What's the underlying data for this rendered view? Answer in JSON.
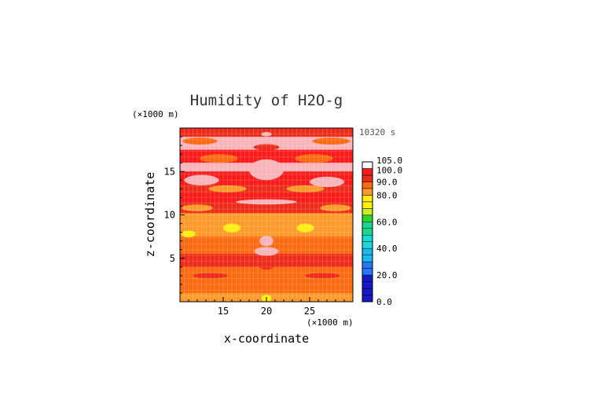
{
  "chart_data": {
    "type": "heatmap",
    "title": "Humidity of H2O-g",
    "time_label": "10320 s",
    "xlabel": "x-coordinate",
    "ylabel": "z-coordinate",
    "x_unit": "(×1000 m)",
    "y_unit": "(×1000 m)",
    "xlim": [
      10,
      30
    ],
    "ylim": [
      0,
      20
    ],
    "x_ticks": [
      "15",
      "20",
      "25"
    ],
    "y_ticks": [
      "5",
      "10",
      "15"
    ],
    "colorbar": {
      "labels": [
        "0.0",
        "20.0",
        "40.0",
        "60.0",
        "80.0",
        "90.0",
        "100.0",
        "105.0"
      ],
      "min": 0,
      "max": 105
    },
    "bands": [
      {
        "z": [
          19.0,
          20.0
        ],
        "value": 92
      },
      {
        "z": [
          17.5,
          19.0
        ],
        "value": 100
      },
      {
        "z": [
          16.0,
          17.5
        ],
        "value": 97
      },
      {
        "z": [
          15.0,
          16.0
        ],
        "value": 101
      },
      {
        "z": [
          13.5,
          15.0
        ],
        "value": 96
      },
      {
        "z": [
          12.5,
          13.5
        ],
        "value": 90
      },
      {
        "z": [
          11.5,
          12.5
        ],
        "value": 99
      },
      {
        "z": [
          10.2,
          11.5
        ],
        "value": 91
      },
      {
        "z": [
          9.0,
          10.2
        ],
        "value": 80
      },
      {
        "z": [
          7.5,
          9.0
        ],
        "value": 84
      },
      {
        "z": [
          5.5,
          7.5
        ],
        "value": 88
      },
      {
        "z": [
          4.0,
          5.5
        ],
        "value": 90
      },
      {
        "z": [
          2.5,
          4.0
        ],
        "value": 86
      },
      {
        "z": [
          1.0,
          2.5
        ],
        "value": 88
      },
      {
        "z": [
          0.0,
          1.0
        ],
        "value": 84
      }
    ],
    "blobs": [
      {
        "x": 20,
        "z": 19.3,
        "rx": 0.6,
        "rz": 0.25,
        "value": 101
      },
      {
        "x": 12.3,
        "z": 18.5,
        "rx": 2.0,
        "rz": 0.4,
        "value": 88
      },
      {
        "x": 27.5,
        "z": 18.5,
        "rx": 2.2,
        "rz": 0.4,
        "value": 88
      },
      {
        "x": 20,
        "z": 17.8,
        "rx": 1.5,
        "rz": 0.35,
        "value": 92
      },
      {
        "x": 14.5,
        "z": 16.5,
        "rx": 2.2,
        "rz": 0.5,
        "value": 88
      },
      {
        "x": 25.5,
        "z": 16.5,
        "rx": 2.2,
        "rz": 0.5,
        "value": 88
      },
      {
        "x": 20,
        "z": 15.2,
        "rx": 2.0,
        "rz": 1.2,
        "value": 101
      },
      {
        "x": 12.5,
        "z": 14.0,
        "rx": 2.0,
        "rz": 0.6,
        "value": 101
      },
      {
        "x": 27.0,
        "z": 13.8,
        "rx": 2.0,
        "rz": 0.6,
        "value": 101
      },
      {
        "x": 15.5,
        "z": 13.0,
        "rx": 2.2,
        "rz": 0.4,
        "value": 84
      },
      {
        "x": 24.5,
        "z": 13.0,
        "rx": 2.2,
        "rz": 0.4,
        "value": 84
      },
      {
        "x": 20,
        "z": 11.5,
        "rx": 3.5,
        "rz": 0.3,
        "value": 101
      },
      {
        "x": 12.0,
        "z": 10.8,
        "rx": 1.8,
        "rz": 0.4,
        "value": 84
      },
      {
        "x": 28.0,
        "z": 10.8,
        "rx": 1.8,
        "rz": 0.4,
        "value": 84
      },
      {
        "x": 16.0,
        "z": 8.5,
        "rx": 1.0,
        "rz": 0.5,
        "value": 75
      },
      {
        "x": 24.5,
        "z": 8.5,
        "rx": 1.0,
        "rz": 0.5,
        "value": 75
      },
      {
        "x": 11.0,
        "z": 7.8,
        "rx": 0.8,
        "rz": 0.4,
        "value": 75
      },
      {
        "x": 20,
        "z": 7.0,
        "rx": 0.8,
        "rz": 0.6,
        "value": 101
      },
      {
        "x": 20,
        "z": 5.8,
        "rx": 1.4,
        "rz": 0.5,
        "value": 101
      },
      {
        "x": 20,
        "z": 4.3,
        "rx": 1.0,
        "rz": 0.6,
        "value": 92
      },
      {
        "x": 13.5,
        "z": 3.0,
        "rx": 2.0,
        "rz": 0.3,
        "value": 92
      },
      {
        "x": 26.5,
        "z": 3.0,
        "rx": 2.0,
        "rz": 0.3,
        "value": 92
      },
      {
        "x": 20,
        "z": 0.4,
        "rx": 0.6,
        "rz": 0.4,
        "value": 75
      }
    ]
  }
}
